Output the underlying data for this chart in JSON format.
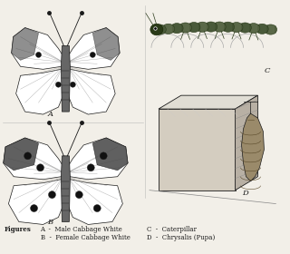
{
  "bg_color": "#f2efe8",
  "figsize": [
    3.2,
    2.8
  ],
  "dpi": 100,
  "caption_figures": "Figures",
  "caption_A": "A  -  Male Cabbage White",
  "caption_B": "B  -  Female Cabbage White",
  "caption_C": "C  -  Caterpillar",
  "caption_D": "D  -  Chrysalis (Pupa)",
  "label_A": "A",
  "label_B": "B",
  "label_C": "C",
  "label_D": "D",
  "line_color": "#1a1a1a",
  "wing_fill": "#ffffff",
  "body_fill": "#888888",
  "dark_fill": "#222222",
  "spot_color": "#111111",
  "cat_body": "#5a6a4a",
  "box_front": "#d4cdc0",
  "box_top": "#e0ddd4",
  "box_right": "#b8b0a4",
  "chrysalis_fill": "#9a8a6a"
}
